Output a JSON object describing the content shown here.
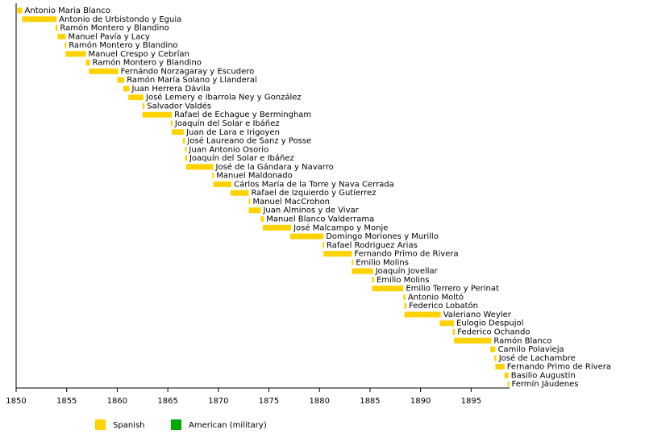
{
  "chart_data": {
    "type": "timeline",
    "categories": [
      "Antonio Maria Blanco",
      "Antonio de Urbistondo y Eguia",
      "Ramón Montero y Blandino",
      "Manuel Pavía y Lacy",
      "Ramón Montero y Blandino",
      "Manuel Crespo y Cebrían",
      "Ramón Montero y Blandino",
      "Fernándo Norzagaray y Escudero",
      "Ramón María Solano y Llanderal",
      "Juan Herrera Dávila",
      "José Lemery e Ibarrola Ney y González",
      "Salvador Valdés",
      "Rafael de Echague y Bermingham",
      "Joaquín del Solar e Ibáñez",
      "Juan de Lara e Irigoyen",
      "José Laureano de Sanz y Posse",
      "Juan Antonio Osorio",
      "Joaquín del Solar e Ibáñez",
      "José de la Gándara y Navarro",
      "Manuel Maldonado",
      "Cárlos María de la Torre y Nava Cerrada",
      "Rafael de Izquierdo y Gutíerrez",
      "Manuel MacCrohon",
      "Juan Alminos y de Vivar",
      "Manuel Blanco Valderrama",
      "José Malcampo y Monje",
      "Domingo Moriones y Murillo",
      "Rafael Rodriguez Arias",
      "Fernando Primo de Rivera",
      "Emilio Molins",
      "Joaquín Jovellar",
      "Emilio Molins",
      "Emilio Terrero y Perinat",
      "Antonio Moltó",
      "Federico Lobatón",
      "Valeriano Weyler",
      "Eulogio Despujol",
      "Federico Ochando",
      "Ramón Blanco",
      "Camilo Polavieja",
      "José de Lachambre",
      "Fernando Primo de Rivera",
      "Basilio Augustín",
      "Fermín Jáudenes"
    ],
    "starts": [
      1850.1,
      1850.6,
      1853.9,
      1854.1,
      1854.8,
      1854.9,
      1856.9,
      1857.2,
      1860.0,
      1860.6,
      1861.1,
      1862.5,
      1862.5,
      1865.3,
      1865.4,
      1866.5,
      1866.7,
      1866.7,
      1866.8,
      1869.4,
      1869.5,
      1871.2,
      1873.0,
      1873.0,
      1874.2,
      1874.4,
      1877.1,
      1880.3,
      1880.4,
      1883.2,
      1883.2,
      1885.2,
      1885.2,
      1888.3,
      1888.4,
      1888.4,
      1891.9,
      1893.2,
      1893.3,
      1896.9,
      1897.3,
      1897.4,
      1898.3,
      1898.6
    ],
    "ends": [
      1850.6,
      1854.0,
      1854.1,
      1854.9,
      1854.9,
      1856.9,
      1857.3,
      1860.1,
      1860.7,
      1861.2,
      1862.6,
      1862.7,
      1865.4,
      1865.4,
      1866.6,
      1866.7,
      1866.8,
      1866.9,
      1869.5,
      1869.5,
      1871.3,
      1873.0,
      1873.1,
      1874.2,
      1874.5,
      1877.2,
      1880.4,
      1880.4,
      1883.2,
      1883.3,
      1885.3,
      1885.4,
      1888.3,
      1888.5,
      1888.6,
      1892.0,
      1893.3,
      1893.4,
      1897.0,
      1897.4,
      1897.5,
      1898.3,
      1898.7,
      1898.7
    ],
    "xlim": [
      1850,
      1898.8
    ],
    "xticks": [
      1850,
      1855,
      1860,
      1865,
      1870,
      1875,
      1880,
      1885,
      1890,
      1895
    ],
    "legend": [
      {
        "name": "Spanish",
        "color": "#ffd200"
      },
      {
        "name": "American (military)",
        "color": "#00a800"
      }
    ]
  }
}
